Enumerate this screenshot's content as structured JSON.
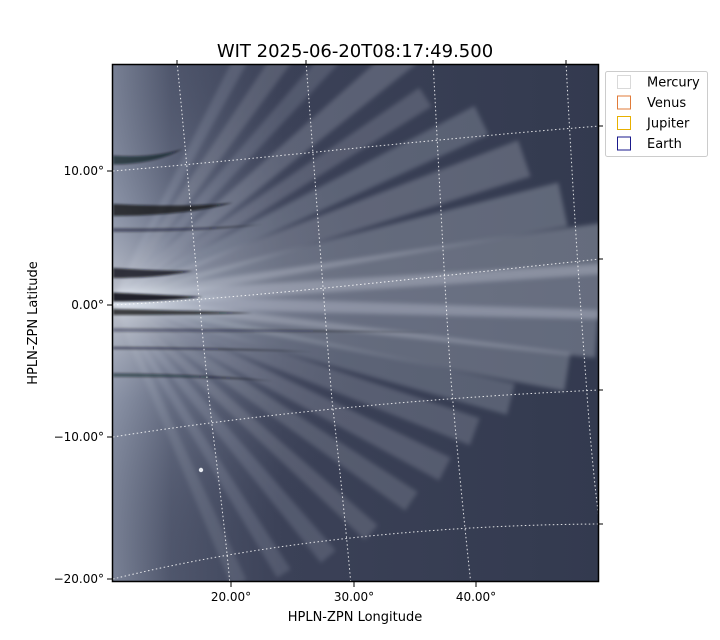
{
  "chart_data": {
    "type": "heatmap",
    "title": "WIT 2025-06-20T08:17:49.500",
    "xlabel": "HPLN-ZPN Longitude",
    "ylabel": "HPLN-ZPN Latitude",
    "xticks": [
      "20.00°",
      "30.00°",
      "40.00°"
    ],
    "yticks": [
      "10.00°",
      "0.00°",
      "−10.00°",
      "−20.00°"
    ],
    "xlim": [
      10.3,
      50
    ],
    "ylim": [
      -20,
      17.6
    ],
    "grid": true,
    "colormap": "bone",
    "legend": {
      "placement": "outside-top-right",
      "entries": [
        {
          "name": "Mercury",
          "color": "#d9d9d9"
        },
        {
          "name": "Venus",
          "color": "#e07b39"
        },
        {
          "name": "Jupiter",
          "color": "#e8b000"
        },
        {
          "name": "Earth",
          "color": "#1a1a8c"
        }
      ]
    }
  }
}
